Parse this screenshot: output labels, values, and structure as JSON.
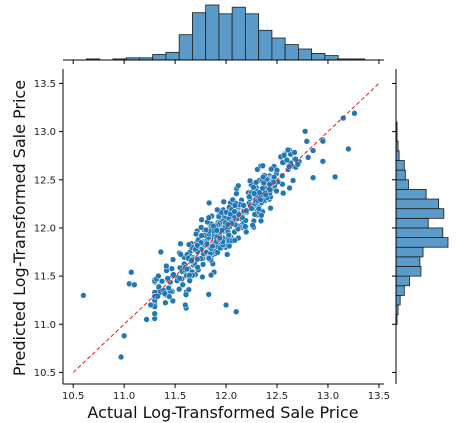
{
  "chart_data": {
    "type": "scatter",
    "xlabel": "Actual Log-Transformed Sale Price",
    "ylabel": "Predicted Log-Transformed Sale Price",
    "xlim": [
      10.4,
      13.55
    ],
    "ylim": [
      10.38,
      13.65
    ],
    "x_ticks": [
      "10.5",
      "11.0",
      "11.5",
      "12.0",
      "12.5",
      "13.0",
      "13.5"
    ],
    "y_ticks": [
      "10.5",
      "11.0",
      "11.5",
      "12.0",
      "12.5",
      "13.0",
      "13.5"
    ],
    "reference_line": {
      "from": [
        10.5,
        10.5
      ],
      "to": [
        13.5,
        13.5
      ],
      "color": "#e31a1c",
      "style": "dashed"
    },
    "point_color": "#1f77b4",
    "bar_color": "#5b9bc9",
    "grid": false,
    "outliers": [
      {
        "x": 10.6,
        "y": 11.3
      },
      {
        "x": 10.97,
        "y": 10.66
      },
      {
        "x": 11.0,
        "y": 10.88
      },
      {
        "x": 11.05,
        "y": 11.42
      },
      {
        "x": 11.07,
        "y": 11.54
      },
      {
        "x": 11.1,
        "y": 11.41
      },
      {
        "x": 11.22,
        "y": 11.05
      },
      {
        "x": 11.26,
        "y": 11.2
      },
      {
        "x": 11.3,
        "y": 11.11
      },
      {
        "x": 11.33,
        "y": 11.29
      },
      {
        "x": 11.36,
        "y": 11.75
      },
      {
        "x": 11.6,
        "y": 11.2
      },
      {
        "x": 11.83,
        "y": 11.31
      },
      {
        "x": 12.0,
        "y": 11.2
      },
      {
        "x": 12.1,
        "y": 11.13
      },
      {
        "x": 12.5,
        "y": 12.6
      },
      {
        "x": 12.95,
        "y": 12.9
      },
      {
        "x": 13.07,
        "y": 12.53
      },
      {
        "x": 13.15,
        "y": 13.14
      },
      {
        "x": 13.2,
        "y": 12.82
      },
      {
        "x": 13.26,
        "y": 13.19
      }
    ],
    "main_cluster": {
      "x_center": 12.0,
      "x_spread": 0.38,
      "noise": 0.13,
      "count": 440
    },
    "x_marginal": {
      "bin_edges": [
        10.5,
        10.63,
        10.76,
        10.89,
        11.02,
        11.15,
        11.28,
        11.41,
        11.54,
        11.67,
        11.8,
        11.93,
        12.06,
        12.19,
        12.32,
        12.45,
        12.58,
        12.71,
        12.84,
        12.97,
        13.1,
        13.23,
        13.36
      ],
      "counts": [
        0,
        1,
        0,
        1,
        2,
        2,
        5,
        7,
        23,
        43,
        50,
        42,
        48,
        42,
        27,
        20,
        14,
        10,
        6,
        4,
        1,
        1
      ]
    },
    "y_marginal": {
      "bin_edges": [
        10.5,
        10.6,
        10.7,
        10.8,
        10.9,
        11.0,
        11.1,
        11.2,
        11.3,
        11.4,
        11.5,
        11.6,
        11.7,
        11.8,
        11.9,
        12.0,
        12.1,
        12.2,
        12.3,
        12.4,
        12.5,
        12.6,
        12.7,
        12.8,
        12.9,
        13.0,
        13.1,
        13.2,
        13.3
      ],
      "counts": [
        0,
        0,
        0,
        0,
        0,
        1,
        2,
        4,
        8,
        13,
        24,
        23,
        26,
        50,
        45,
        31,
        46,
        41,
        29,
        12,
        9,
        8,
        3,
        2,
        1,
        1,
        0,
        0
      ]
    }
  }
}
